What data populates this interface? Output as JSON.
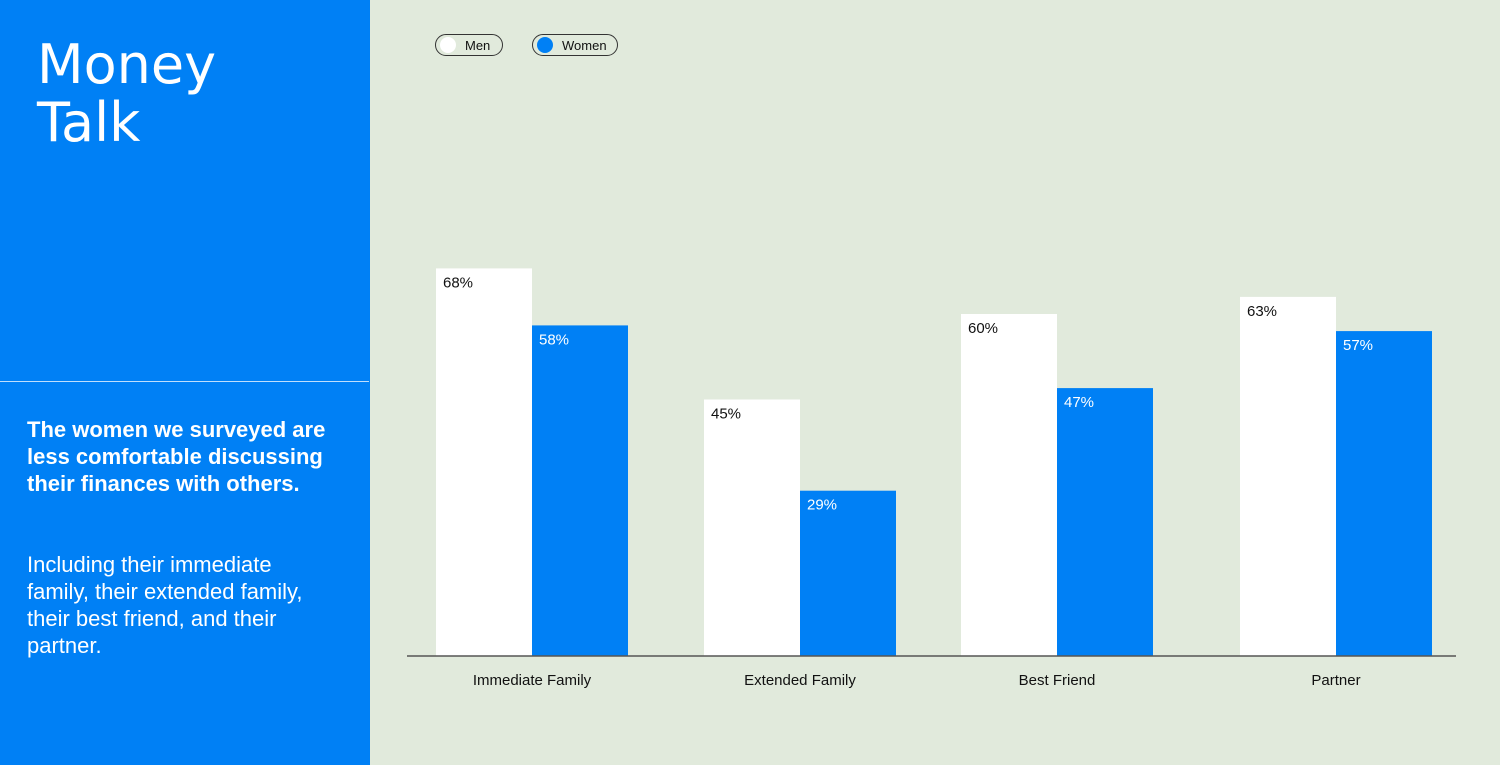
{
  "sidebar": {
    "title_lines": [
      "Money",
      "Talk"
    ],
    "headline": "The women we surveyed are less comfortable discussing their finances with others.",
    "body": "Including their immediate family, their extended family, their best friend, and their partner."
  },
  "legend": {
    "men": "Men",
    "women": "Women"
  },
  "colors": {
    "men": "#ffffff",
    "women": "#0080f5",
    "background": "#e1eadc",
    "sidebar": "#0080f5"
  },
  "chart_data": {
    "type": "bar",
    "categories": [
      "Immediate Family",
      "Extended Family",
      "Best Friend",
      "Partner"
    ],
    "series": [
      {
        "name": "Men",
        "values": [
          68,
          45,
          60,
          63
        ],
        "labels": [
          "68%",
          "45%",
          "60%",
          "63%"
        ]
      },
      {
        "name": "Women",
        "values": [
          58,
          29,
          47,
          57
        ],
        "labels": [
          "58%",
          "29%",
          "47%",
          "57%"
        ]
      }
    ],
    "ylim": [
      0,
      100
    ],
    "grid": false,
    "legend_position": "top-left"
  }
}
